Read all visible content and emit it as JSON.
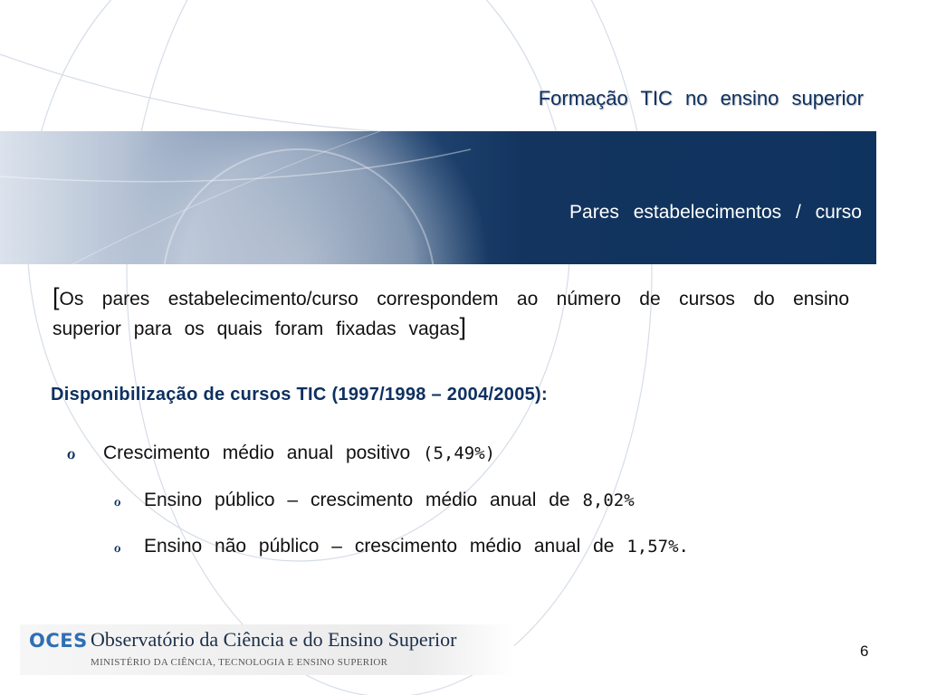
{
  "slide": {
    "title": "Formação TIC no ensino superior",
    "subtitle": "Pares estabelecimentos / curso",
    "page_number": "6"
  },
  "definition": {
    "open_bracket": "[",
    "text": "Os pares estabelecimento/curso correspondem ao número de cursos do ensino superior para os quais foram fixadas vagas",
    "close_bracket": "]"
  },
  "section_heading": "Disponibilização de cursos TIC (1997/1998 – 2004/2005):",
  "bullets": [
    {
      "icon": "bullet-marker-icon",
      "glyph": "ℴ",
      "text": "Crescimento médio anual positivo",
      "value": "(5,49%)"
    },
    {
      "icon": "bullet-marker-icon",
      "glyph": "ℴ",
      "text": "Ensino público – crescimento médio anual de",
      "value": "8,02%"
    },
    {
      "icon": "bullet-marker-icon",
      "glyph": "ℴ",
      "text": "Ensino não público – crescimento médio anual de",
      "value": "1,57%."
    }
  ],
  "footer": {
    "acronym": "OCES",
    "name": "Observatório da Ciência e do Ensino Superior",
    "ministry": "MINISTÉRIO DA CIÊNCIA, TECNOLOGIA E ENSINO SUPERIOR"
  },
  "colors": {
    "title": "#0d3060",
    "band_dark": "#0f335f",
    "logo_acronym": "#2f6eb4"
  }
}
